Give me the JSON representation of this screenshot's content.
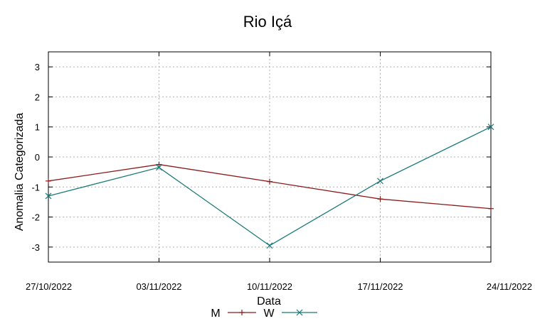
{
  "chart_data": {
    "type": "line",
    "title": "Rio Içá",
    "xlabel": "Data",
    "ylabel": "Anomalia Categorizada",
    "categories": [
      "27/10/2022",
      "03/11/2022",
      "10/11/2022",
      "17/11/2022",
      "24/11/2022"
    ],
    "ylim": [
      -3.5,
      3.5
    ],
    "yticks": [
      "3",
      "2",
      "1",
      "0",
      "-1",
      "-2",
      "-3"
    ],
    "grid": true,
    "legend_position": "bottom-center",
    "series": [
      {
        "name": "M",
        "marker": "plus",
        "color": "#8b1a1a",
        "values": [
          -0.8,
          -0.25,
          -0.82,
          -1.4,
          -1.72
        ]
      },
      {
        "name": "W",
        "marker": "x",
        "color": "#1a7a7a",
        "values": [
          -1.3,
          -0.35,
          -2.95,
          -0.8,
          1.0
        ]
      }
    ]
  }
}
